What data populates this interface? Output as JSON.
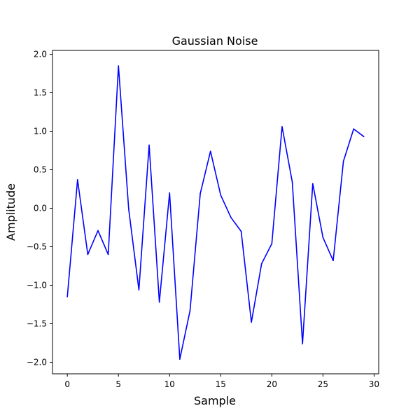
{
  "chart_data": {
    "type": "line",
    "title": "Gaussian Noise",
    "xlabel": "Sample",
    "ylabel": "Amplitude",
    "xlim": [
      -1.45,
      30.45
    ],
    "ylim": [
      -2.15,
      2.05
    ],
    "xticks": [
      0,
      5,
      10,
      15,
      20,
      25,
      30
    ],
    "yticks": [
      -2.0,
      -1.5,
      -1.0,
      -0.5,
      0.0,
      0.5,
      1.0,
      1.5,
      2.0
    ],
    "xtick_labels": [
      "0",
      "5",
      "10",
      "15",
      "20",
      "25",
      "30"
    ],
    "ytick_labels": [
      "−2.0",
      "−1.5",
      "−1.0",
      "−0.5",
      "0.0",
      "0.5",
      "1.0",
      "1.5",
      "2.0"
    ],
    "grid": false,
    "series": [
      {
        "color": "#0000ff",
        "x": [
          0,
          1,
          2,
          3,
          4,
          5,
          6,
          7,
          8,
          9,
          10,
          11,
          12,
          13,
          14,
          15,
          16,
          17,
          18,
          19,
          20,
          21,
          22,
          23,
          24,
          25,
          26,
          27,
          28,
          29
        ],
        "values": [
          -1.15,
          0.37,
          -0.6,
          -0.29,
          -0.6,
          1.85,
          -0.01,
          -1.06,
          0.82,
          -1.22,
          0.2,
          -1.96,
          -1.33,
          0.19,
          0.74,
          0.17,
          -0.12,
          -0.3,
          -1.48,
          -0.72,
          -0.46,
          1.06,
          0.34,
          -1.76,
          0.32,
          -0.38,
          -0.68,
          0.61,
          1.03,
          0.93
        ]
      }
    ]
  }
}
